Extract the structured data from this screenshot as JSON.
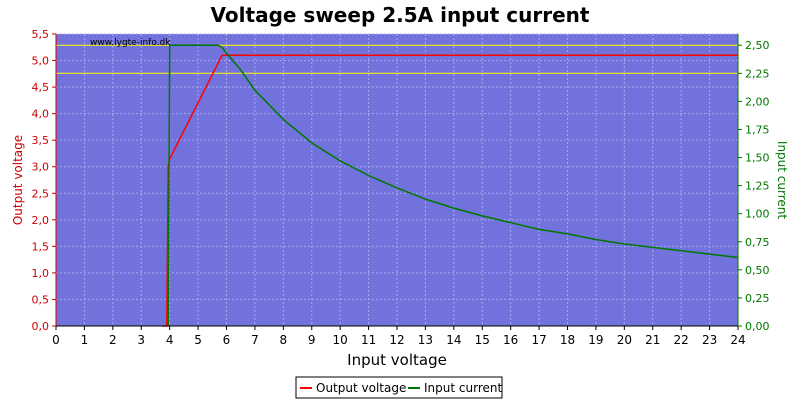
{
  "chart_data": {
    "type": "line",
    "title": "Voltage sweep 2.5A input current",
    "watermark": "www.lygte-info.dk",
    "xlabel": "Input voltage",
    "ylabel_left": "Output voltage",
    "ylabel_right": "Input current",
    "xlim": [
      0,
      24
    ],
    "ylim_left": [
      0,
      5.5
    ],
    "ylim_right": [
      0,
      2.6
    ],
    "x_ticks": [
      "0",
      "1",
      "2",
      "3",
      "4",
      "5",
      "6",
      "7",
      "8",
      "9",
      "10",
      "11",
      "12",
      "13",
      "14",
      "15",
      "16",
      "17",
      "18",
      "19",
      "20",
      "21",
      "22",
      "23",
      "24"
    ],
    "y_left_ticks": [
      "0,0",
      "0,5",
      "1,0",
      "1,5",
      "2,0",
      "2,5",
      "3,0",
      "3,5",
      "4,0",
      "4,5",
      "5,0",
      "5,5"
    ],
    "y_right_ticks": [
      "0,00",
      "0,25",
      "0,50",
      "0,75",
      "1,00",
      "1,25",
      "1,50",
      "1,75",
      "2,00",
      "2,25",
      "2,50"
    ],
    "grid": true,
    "legend_position": "bottom-center",
    "colors": {
      "plot_background": "#7272dd",
      "output_voltage": "#ff0000",
      "input_current": "#007700",
      "reference_lines": "#ffff00",
      "grid": "#a8a8ee"
    },
    "reference_lines_right": [
      2.5,
      2.25
    ],
    "series": [
      {
        "name": "Output voltage",
        "axis": "left",
        "x": [
          3.75,
          3.9,
          3.95,
          4.0,
          5.85,
          6.0,
          24.0
        ],
        "y": [
          0.0,
          0.0,
          3.0,
          3.15,
          5.1,
          5.1,
          5.1
        ]
      },
      {
        "name": "Input current",
        "axis": "right",
        "x": [
          3.95,
          4.0,
          4.05,
          5.7,
          5.85,
          6.0,
          6.5,
          7,
          8,
          9,
          10,
          11,
          12,
          13,
          14,
          15,
          16,
          17,
          18,
          19,
          20,
          21,
          22,
          23,
          24
        ],
        "y": [
          0.0,
          2.5,
          2.5,
          2.5,
          2.48,
          2.43,
          2.28,
          2.1,
          1.84,
          1.63,
          1.47,
          1.34,
          1.23,
          1.13,
          1.05,
          0.98,
          0.92,
          0.86,
          0.82,
          0.77,
          0.73,
          0.7,
          0.67,
          0.64,
          0.61
        ]
      }
    ]
  }
}
